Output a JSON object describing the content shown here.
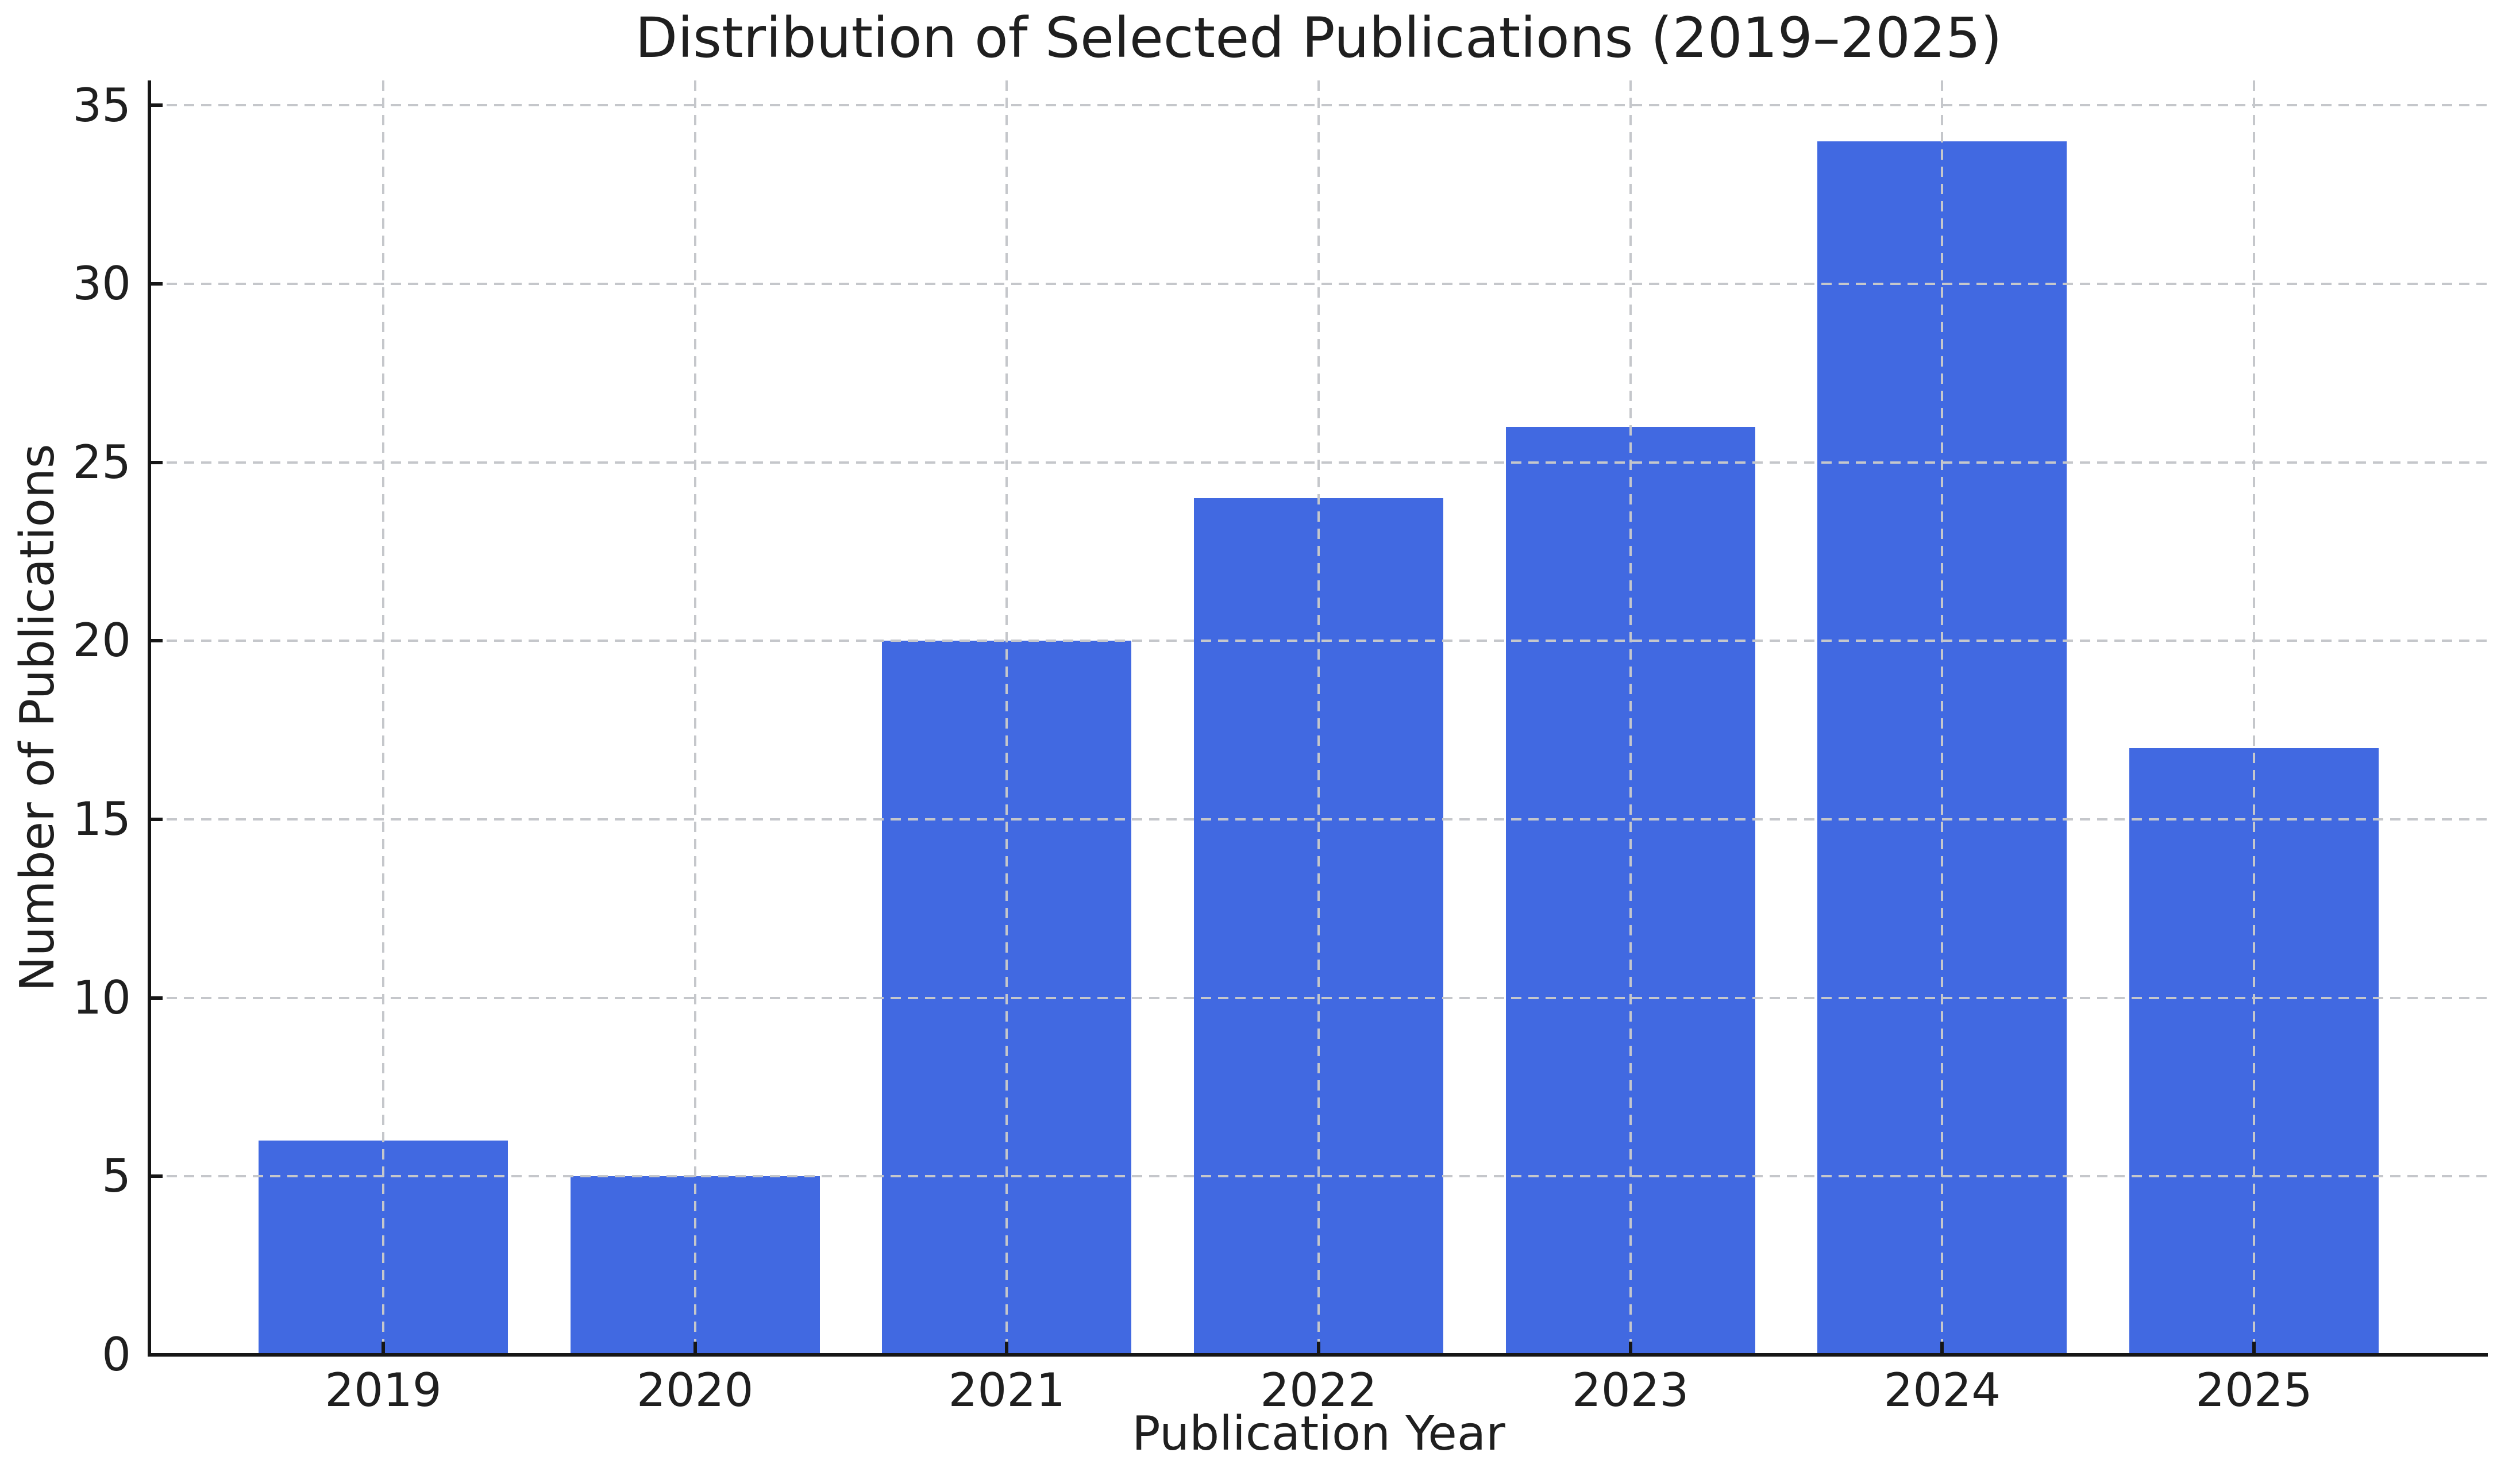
{
  "figure": {
    "background_color": "#ffffff"
  },
  "chart_data": {
    "type": "bar",
    "title": "Distribution of Selected Publications (2019–2025)",
    "xlabel": "Publication Year",
    "ylabel": "Number of Publications",
    "categories": [
      "2019",
      "2020",
      "2021",
      "2022",
      "2023",
      "2024",
      "2025"
    ],
    "values": [
      6,
      5,
      20,
      24,
      26,
      34,
      17
    ],
    "yticks": [
      0,
      5,
      10,
      15,
      20,
      25,
      30,
      35
    ],
    "ylim": [
      0,
      35.7
    ],
    "bar_color": "#4169E1",
    "bar_width_fraction": 0.8,
    "grid": {
      "visible": true,
      "style": "dashed",
      "color": "#c5c7cb",
      "axes": "both",
      "drawn_above_bars": true
    },
    "spines": [
      "left",
      "bottom"
    ],
    "tick_direction": "in",
    "legend_position": "none"
  }
}
